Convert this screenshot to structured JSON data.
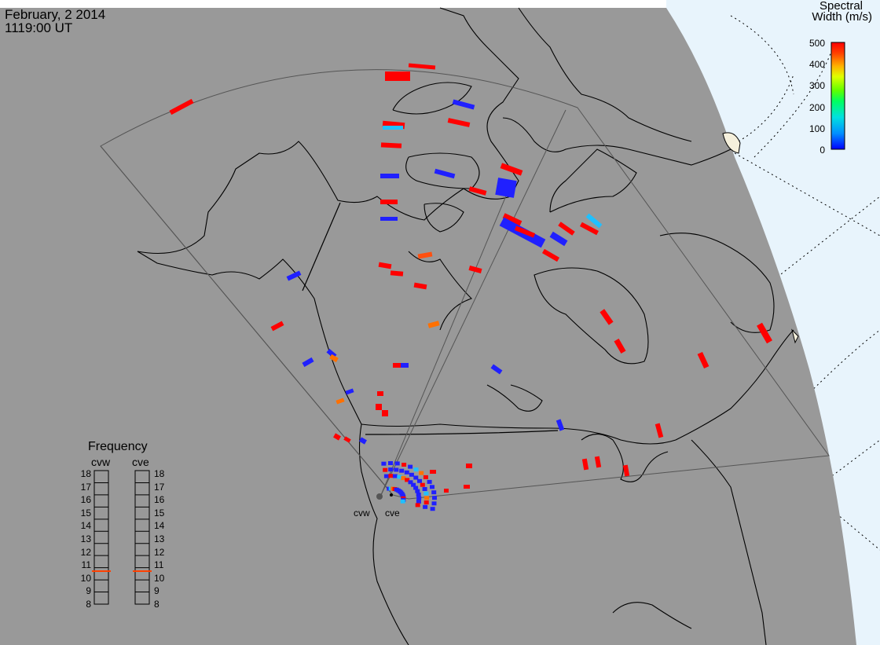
{
  "header": {
    "date": "February, 2 2014",
    "time": "1119:00 UT"
  },
  "colorbar": {
    "title_line1": "Spectral",
    "title_line2": "Width (m/s)",
    "ticks": [
      "500",
      "400",
      "300",
      "200",
      "100",
      "0"
    ],
    "range": [
      0,
      500
    ],
    "colors": [
      "#0000ff",
      "#0090ff",
      "#00e0e0",
      "#00ff60",
      "#40ff00",
      "#c0ff00",
      "#ffe000",
      "#ff9000",
      "#ff4000",
      "#ff0000"
    ]
  },
  "frequency_panel": {
    "title": "Frequency",
    "columns": [
      {
        "label": "cvw",
        "selected": "10.5"
      },
      {
        "label": "cve",
        "selected": "10.5"
      }
    ],
    "ticks": [
      "18",
      "17",
      "16",
      "15",
      "14",
      "13",
      "12",
      "11",
      "10",
      "9",
      "8"
    ],
    "indicator_color": "#ff4000"
  },
  "radars": [
    {
      "label": "cvw"
    },
    {
      "label": "cve"
    }
  ],
  "colors": {
    "land": "#999999",
    "ocean_polar": "#e8f4fc",
    "coastline": "#000000",
    "fov_outline": "#555555"
  }
}
